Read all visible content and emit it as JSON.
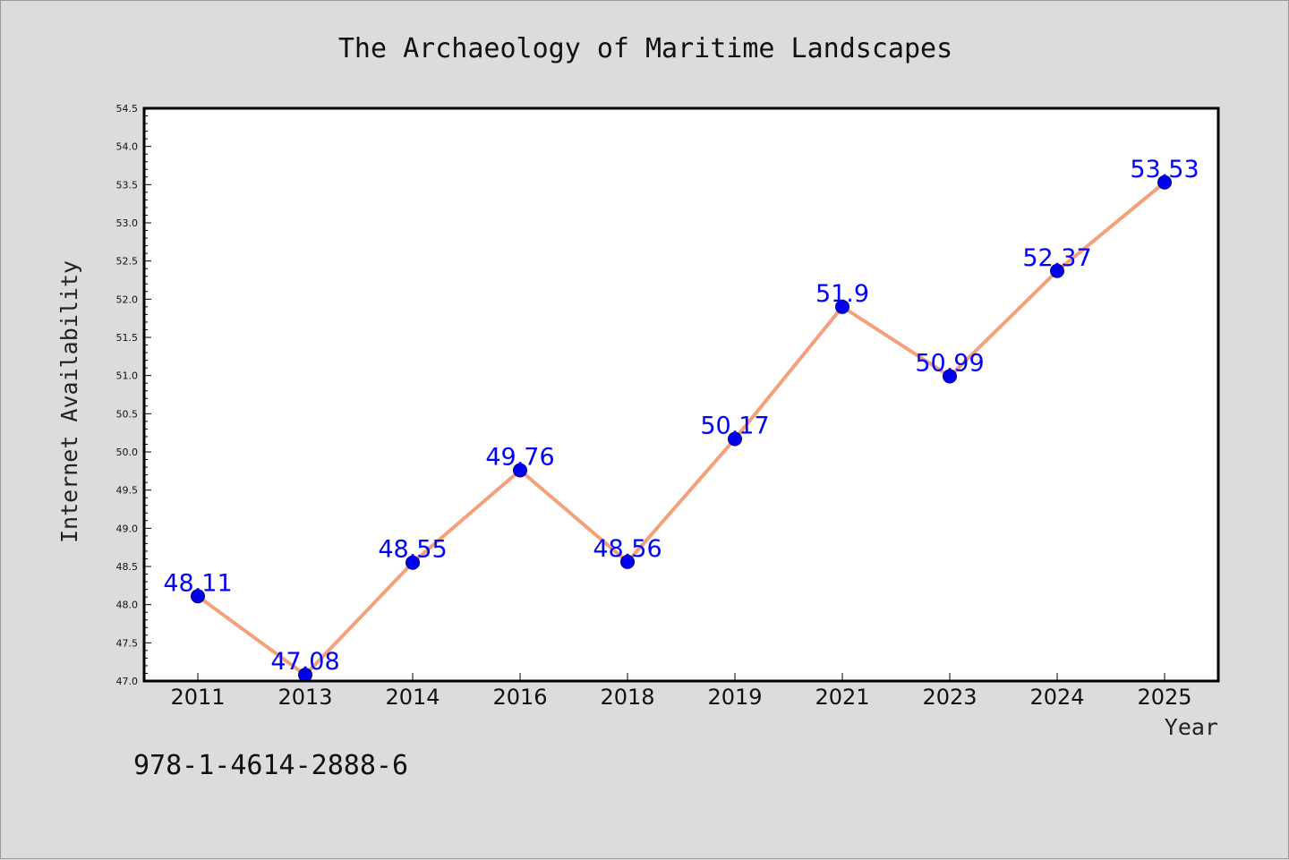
{
  "chart_data": {
    "type": "line",
    "title": "The Archaeology of Maritime Landscapes",
    "xlabel": "Year",
    "ylabel": "Internet Availability",
    "categories": [
      "2011",
      "2013",
      "2014",
      "2016",
      "2018",
      "2019",
      "2021",
      "2023",
      "2024",
      "2025"
    ],
    "series": [
      {
        "values": [
          48.11,
          47.08,
          48.55,
          49.76,
          48.56,
          50.17,
          51.9,
          50.99,
          52.37,
          53.53
        ],
        "data_labels": [
          "48.11",
          "47.08",
          "48.55",
          "49.76",
          "48.56",
          "50.17",
          "51.9",
          "50.99",
          "52.37",
          "53.53"
        ],
        "line_color": "#f4a07a",
        "marker_color": "#0000ee"
      }
    ],
    "ylim": [
      47.0,
      54.5
    ],
    "yticks": [
      "47.0",
      "47.5",
      "48.0",
      "48.5",
      "49.0",
      "49.5",
      "50.0",
      "50.5",
      "51.0",
      "51.5",
      "52.0",
      "52.5",
      "53.0",
      "53.5",
      "54.0",
      "54.5"
    ],
    "grid": false,
    "legend": "none"
  },
  "footer": {
    "isbn": "978-1-4614-2888-6"
  },
  "colors": {
    "background": "#dcdcdc",
    "plot_background": "#ffffff",
    "line": "#f4a07a",
    "marker": "#0000ee",
    "data_label": "#0000ff"
  }
}
